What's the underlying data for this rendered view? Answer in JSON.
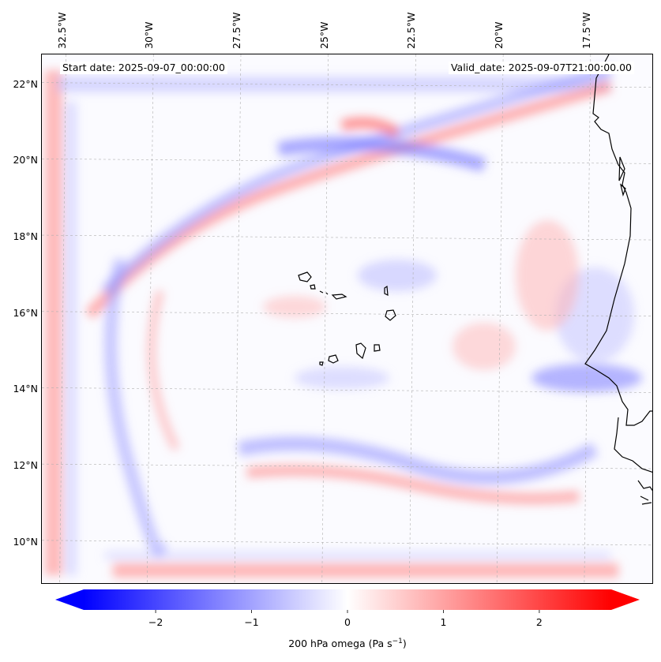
{
  "map": {
    "title_left": "Start date: 2025-09-07_00:00:00",
    "title_right": "Valid_date: 2025-09-07T21:00:00.00",
    "variable_label": "200 hPa omega (Pa s",
    "variable_unit_exponent": "−1",
    "variable_label_close": ")",
    "region": "Cabo Verde / West Africa coast",
    "lon_labels": [
      "32.5°W",
      "30°W",
      "27.5°W",
      "25°W",
      "22.5°W",
      "20°W",
      "17.5°W"
    ],
    "lat_labels": [
      "22°N",
      "20°N",
      "18°N",
      "16°N",
      "14°N",
      "12°N",
      "10°N"
    ],
    "lon_values": [
      -32.5,
      -30,
      -27.5,
      -25,
      -22.5,
      -20,
      -17.5
    ],
    "lat_values": [
      22,
      20,
      18,
      16,
      14,
      12,
      10
    ],
    "extent": {
      "lon_min": -33.1,
      "lon_max": -15.6,
      "lat_min": 8.9,
      "lat_max": 22.8
    },
    "colors": {
      "positive": "#ff0000",
      "negative": "#0000ff",
      "neutral": "#ffffff",
      "coast": "#000000",
      "grid": "#b0b0b0"
    }
  },
  "colorbar": {
    "min": -2.75,
    "max": 2.75,
    "ticks": [
      -2,
      -1,
      0,
      1,
      2
    ],
    "tick_labels": [
      "−2",
      "−1",
      "0",
      "1",
      "2"
    ]
  }
}
